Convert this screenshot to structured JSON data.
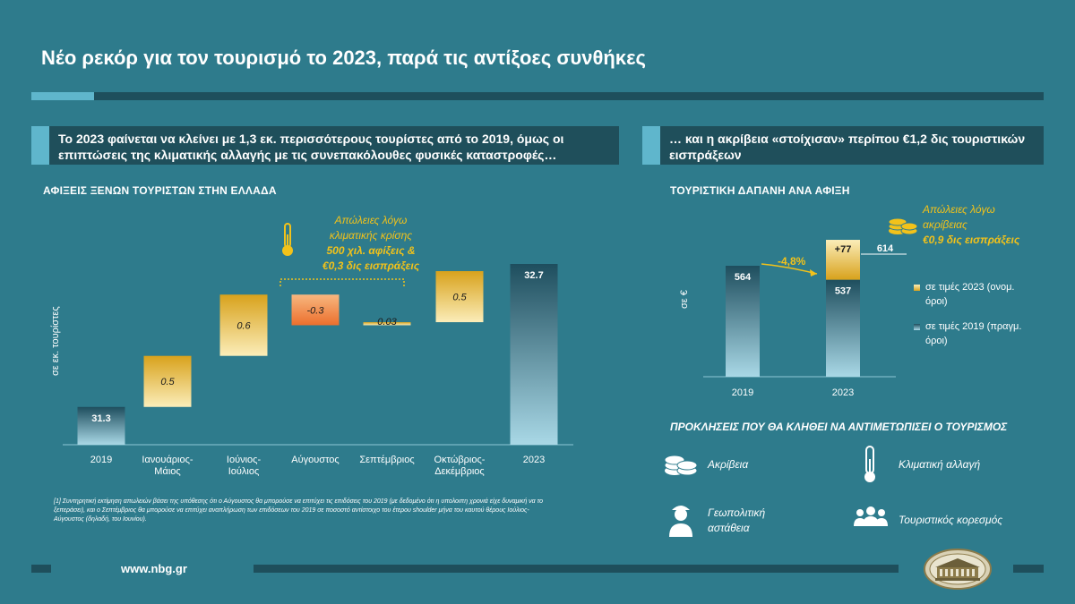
{
  "title": "Νέο ρεκόρ για τον τουρισμό το 2023, παρά τις αντίξοες συνθήκες",
  "left_banner": "Το 2023 φαίνεται να κλείνει με 1,3 εκ. περισσότερους τουρίστες από το 2019, όμως οι επιπτώσεις της κλιματικής αλλαγής με τις συνεπακόλουθες φυσικές καταστροφές…",
  "right_banner": "… και η ακρίβεια «στοίχισαν» περίπου €1,2 δις τουριστικών εισπράξεων",
  "left_chart_title": "ΑΦΙΞΕΙΣ ΞΕΝΩΝ ΤΟΥΡΙΣΤΩΝ ΣΤΗΝ ΕΛΛΑΔΑ",
  "left_ylabel": "σε εκ. τουρίστες",
  "left_note": {
    "line1": "Απώλειες λόγω",
    "line2": "κλιματικής κρίσης",
    "line3": "500 χιλ. αφίξεις &",
    "line4": "€0,3 δις εισπράξεις"
  },
  "right_chart_title": "ΤΟΥΡΙΣΤΙΚΗ ΔΑΠΑΝΗ ΑΝΑ ΑΦΙΞΗ",
  "right_ylabel": "σε €",
  "right_note": {
    "line1": "Απώλειες λόγω",
    "line2": "ακρίβειας",
    "line3": "€0,9 δις εισπράξεις"
  },
  "right_change": "-4,8%",
  "legend": {
    "item1a": "σε τιμές 2023 (ονομ.",
    "item1b": "όροι)",
    "item2a": "σε τιμές 2019 (πραγμ.",
    "item2b": "όροι)"
  },
  "challenges_title": "ΠΡΟΚΛΗΣΕΙΣ ΠΟΥ ΘΑ ΚΛΗΘΕΙ ΝΑ ΑΝΤΙΜΕΤΩΠΙΣΕΙ Ο ΤΟΥΡΙΣΜΟΣ",
  "challenges": {
    "c1": "Ακρίβεια",
    "c2": "Κλιματική αλλαγή",
    "c3a": "Γεωπολιτική",
    "c3b": "αστάθεια",
    "c4": "Τουριστικός κορεσμός"
  },
  "footnote": "[1] Συντηρητική εκτίμηση απωλειών βάσει της υπόθεσης ότι ο Αύγουστος θα μπορούσε να επιτύχει τις επιδόσεις του 2019 (με δεδομένο ότι η υπολοιπη χρονιά είχε δυναμική να το ξεπεράσει), και ο Σεπτέμβριος θα μπορούσε να επιτύχει αναπλήρωση των επιδόσεων του 2019 σε ποσοστό αντίστοιχο του έτερου shoulder μήνα του καυτού θέρους Ιούλιος-Αύγουστος (δηλαδή, του Ιουνίου).",
  "url": "www.nbg.gr",
  "colors": {
    "background": "#2e7b8c",
    "banner": "#1f4f5b",
    "accent_light": "#5fb6cc",
    "gold": "#e2b533",
    "orange": "#f0883a",
    "note_yellow": "#f2c21a"
  },
  "chart_data": [
    {
      "type": "bar",
      "subtype": "waterfall",
      "title": "ΑΦΙΞΕΙΣ ΞΕΝΩΝ ΤΟΥΡΙΣΤΩΝ ΣΤΗΝ ΕΛΛΑΔΑ",
      "ylabel": "σε εκ. τουρίστες",
      "categories": [
        "2019",
        "Ιανουάριος-Μάιος",
        "Ιούνιος-Ιούλιος",
        "Αύγουστος",
        "Σεπτέμβριος",
        "Οκτώβριος-Δεκέμβριος",
        "2023"
      ],
      "values": [
        31.3,
        0.5,
        0.6,
        -0.3,
        0.03,
        0.5,
        32.7
      ],
      "labels": [
        "31.3",
        "0.5",
        "0.6",
        "-0.3",
        "0.03",
        "0.5",
        "32.7"
      ],
      "kinds": [
        "total",
        "delta",
        "delta",
        "delta",
        "delta",
        "delta",
        "total"
      ]
    },
    {
      "type": "bar",
      "subtype": "stacked",
      "title": "ΤΟΥΡΙΣΤΙΚΗ ΔΑΠΑΝΗ ΑΝΑ ΑΦΙΞΗ",
      "ylabel": "σε €",
      "categories": [
        "2019",
        "2023"
      ],
      "series": [
        {
          "name": "σε τιμές 2019 (πραγμ. όροι)",
          "values": [
            564,
            537
          ]
        },
        {
          "name": "σε τιμές 2023 (ονομ. όροι)",
          "values": [
            0,
            77
          ]
        }
      ],
      "labels": [
        "564",
        "537",
        "+77"
      ],
      "total_2023": 614,
      "total_label": "614",
      "change_label": "-4,8%",
      "legend_position": "right"
    }
  ]
}
